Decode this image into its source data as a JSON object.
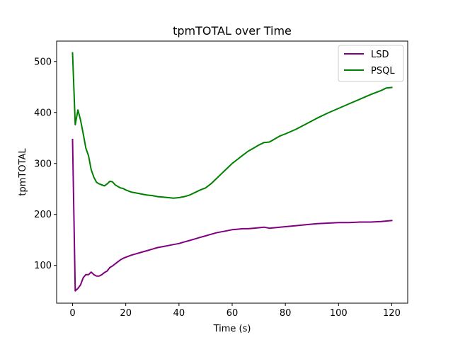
{
  "chart_data": {
    "type": "line",
    "title": "tpmTOTAL over Time",
    "xlabel": "Time (s)",
    "ylabel": "tpmTOTAL",
    "xlim": [
      -6,
      126
    ],
    "ylim": [
      26,
      540
    ],
    "xticks": [
      0,
      20,
      40,
      60,
      80,
      100,
      120
    ],
    "yticks": [
      100,
      200,
      300,
      400,
      500
    ],
    "grid": false,
    "legend_position": "top-right",
    "series": [
      {
        "name": "LSD",
        "color": "#800080",
        "x": [
          0,
          1,
          2,
          3,
          4,
          5,
          6,
          7,
          8,
          9,
          10,
          11,
          12,
          13,
          14,
          15,
          16,
          17,
          18,
          19,
          20,
          22,
          24,
          26,
          28,
          30,
          32,
          34,
          36,
          38,
          40,
          42,
          44,
          46,
          48,
          50,
          52,
          54,
          56,
          58,
          60,
          62,
          64,
          66,
          68,
          70,
          72,
          74,
          76,
          78,
          80,
          84,
          88,
          92,
          96,
          100,
          104,
          108,
          112,
          116,
          120
        ],
        "y": [
          347,
          50,
          55,
          62,
          76,
          82,
          82,
          87,
          82,
          79,
          79,
          82,
          86,
          89,
          96,
          99,
          103,
          107,
          111,
          114,
          116,
          120,
          123,
          126,
          129,
          132,
          135,
          137,
          139,
          141,
          143,
          146,
          149,
          152,
          155,
          158,
          161,
          164,
          166,
          168,
          170,
          171,
          172,
          172,
          173,
          174,
          175,
          173,
          174,
          175,
          176,
          178,
          180,
          182,
          183,
          184,
          184,
          185,
          185,
          186,
          188
        ]
      },
      {
        "name": "PSQL",
        "color": "#008000",
        "x": [
          0,
          1,
          2,
          3,
          4,
          5,
          6,
          7,
          8,
          9,
          10,
          11,
          12,
          13,
          14,
          15,
          16,
          17,
          18,
          19,
          20,
          22,
          24,
          26,
          28,
          30,
          32,
          34,
          36,
          38,
          40,
          42,
          44,
          46,
          48,
          50,
          52,
          54,
          56,
          58,
          60,
          62,
          64,
          66,
          68,
          70,
          72,
          74,
          76,
          78,
          80,
          84,
          88,
          92,
          96,
          100,
          104,
          108,
          112,
          116,
          118,
          120
        ],
        "y": [
          517,
          376,
          405,
          385,
          358,
          330,
          315,
          288,
          273,
          263,
          260,
          258,
          256,
          260,
          265,
          264,
          258,
          255,
          252,
          251,
          248,
          244,
          242,
          240,
          238,
          237,
          235,
          234,
          233,
          232,
          233,
          235,
          238,
          243,
          248,
          252,
          260,
          270,
          280,
          290,
          300,
          308,
          316,
          324,
          330,
          336,
          341,
          342,
          348,
          354,
          358,
          367,
          378,
          389,
          399,
          408,
          417,
          426,
          435,
          443,
          448,
          449
        ]
      }
    ]
  }
}
